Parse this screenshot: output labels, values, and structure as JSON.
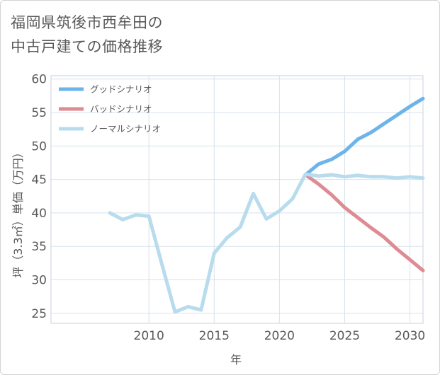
{
  "title_line1": "福岡県筑後市西牟田の",
  "title_line2": "中古戸建ての価格推移",
  "chart_data": {
    "type": "line",
    "xlabel": "年",
    "ylabel": "坪（3.3㎡）単価（万円）",
    "xlim": [
      2002.5,
      2031
    ],
    "ylim": [
      23.5,
      60.5
    ],
    "xticks": [
      2010,
      2015,
      2020,
      2025,
      2030
    ],
    "yticks": [
      25,
      30,
      35,
      40,
      45,
      50,
      55,
      60
    ],
    "grid": true,
    "legend_position": "top-left",
    "series": [
      {
        "name": "グッドシナリオ",
        "color": "#6cb4ea",
        "x": [
          2022,
          2023,
          2024,
          2025,
          2026,
          2027,
          2028,
          2029,
          2030,
          2031
        ],
        "y": [
          45.7,
          47.3,
          48.0,
          49.2,
          51.0,
          52.0,
          53.3,
          54.6,
          55.9,
          57.1
        ]
      },
      {
        "name": "バッドシナリオ",
        "color": "#de8b93",
        "x": [
          2022,
          2023,
          2024,
          2025,
          2026,
          2027,
          2028,
          2029,
          2030,
          2031
        ],
        "y": [
          45.7,
          44.3,
          42.7,
          40.8,
          39.3,
          37.8,
          36.4,
          34.6,
          33.0,
          31.4
        ]
      },
      {
        "name": "ノーマルシナリオ",
        "color": "#b8dced",
        "x": [
          2007,
          2008,
          2009,
          2010,
          2011,
          2012,
          2013,
          2014,
          2015,
          2016,
          2017,
          2018,
          2019,
          2020,
          2021,
          2022,
          2023,
          2024,
          2025,
          2026,
          2027,
          2028,
          2029,
          2030,
          2031
        ],
        "y": [
          40.0,
          39.0,
          39.7,
          39.5,
          32.3,
          25.2,
          26.0,
          25.5,
          34.0,
          36.3,
          37.9,
          42.9,
          39.1,
          40.3,
          42.1,
          45.8,
          45.5,
          45.7,
          45.4,
          45.6,
          45.4,
          45.4,
          45.2,
          45.4,
          45.2
        ]
      }
    ]
  }
}
